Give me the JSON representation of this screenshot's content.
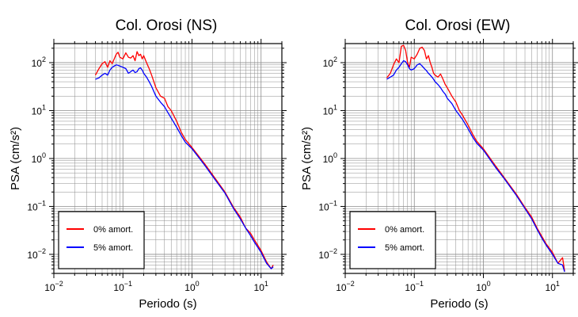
{
  "chart_data": [
    {
      "type": "line",
      "title": "Col. Orosi (NS)",
      "xlabel": "Periodo (s)",
      "ylabel": "PSA (cm/s²)",
      "xscale": "log",
      "yscale": "log",
      "xlim": [
        0.01,
        20
      ],
      "ylim": [
        0.004,
        250
      ],
      "grid": true,
      "legend_position": "bottom-left",
      "x_ticks": [
        {
          "base": "10",
          "exp": "−2"
        },
        {
          "base": "10",
          "exp": "−1"
        },
        {
          "base": "10",
          "exp": "0"
        },
        {
          "base": "10",
          "exp": "1"
        }
      ],
      "y_ticks": [
        {
          "base": "10",
          "exp": "−2"
        },
        {
          "base": "10",
          "exp": "−1"
        },
        {
          "base": "10",
          "exp": "0"
        },
        {
          "base": "10",
          "exp": "1"
        },
        {
          "base": "10",
          "exp": "2"
        }
      ],
      "series": [
        {
          "name": "0% amort.",
          "color": "#ff0000",
          "x": [
            0.04,
            0.045,
            0.05,
            0.055,
            0.06,
            0.065,
            0.07,
            0.075,
            0.08,
            0.085,
            0.09,
            0.1,
            0.11,
            0.12,
            0.13,
            0.14,
            0.15,
            0.16,
            0.17,
            0.18,
            0.19,
            0.2,
            0.22,
            0.24,
            0.26,
            0.28,
            0.3,
            0.35,
            0.4,
            0.45,
            0.5,
            0.6,
            0.7,
            0.8,
            1.0,
            1.5,
            2.0,
            3.0,
            4.0,
            5.0,
            6.0,
            7.0,
            8.0,
            10.0,
            12.0,
            14.0,
            15.0
          ],
          "y": [
            55,
            75,
            95,
            105,
            80,
            110,
            95,
            120,
            150,
            165,
            130,
            120,
            160,
            130,
            125,
            140,
            110,
            170,
            140,
            150,
            120,
            140,
            100,
            75,
            55,
            40,
            30,
            20,
            18,
            12,
            10,
            6,
            3.5,
            2.5,
            1.7,
            0.8,
            0.45,
            0.2,
            0.095,
            0.06,
            0.035,
            0.028,
            0.02,
            0.012,
            0.007,
            0.005,
            0.006
          ]
        },
        {
          "name": "5% amort.",
          "color": "#0000ff",
          "x": [
            0.04,
            0.045,
            0.05,
            0.055,
            0.06,
            0.065,
            0.07,
            0.075,
            0.08,
            0.085,
            0.09,
            0.1,
            0.11,
            0.12,
            0.13,
            0.14,
            0.15,
            0.16,
            0.17,
            0.18,
            0.19,
            0.2,
            0.22,
            0.24,
            0.26,
            0.28,
            0.3,
            0.35,
            0.4,
            0.45,
            0.5,
            0.6,
            0.7,
            0.8,
            1.0,
            1.5,
            2.0,
            3.0,
            4.0,
            5.0,
            6.0,
            7.0,
            8.0,
            10.0,
            12.0,
            14.0,
            15.0
          ],
          "y": [
            45,
            48,
            55,
            60,
            55,
            70,
            80,
            85,
            90,
            88,
            85,
            80,
            75,
            60,
            65,
            70,
            62,
            65,
            75,
            78,
            70,
            60,
            50,
            40,
            32,
            25,
            20,
            15,
            12,
            9,
            7,
            4.5,
            3,
            2.2,
            1.6,
            0.75,
            0.42,
            0.19,
            0.09,
            0.055,
            0.035,
            0.025,
            0.018,
            0.011,
            0.0065,
            0.005,
            0.0055
          ]
        }
      ]
    },
    {
      "type": "line",
      "title": "Col. Orosi (EW)",
      "xlabel": "Periodo (s)",
      "ylabel": "PSA (cm/s²)",
      "xscale": "log",
      "yscale": "log",
      "xlim": [
        0.01,
        20
      ],
      "ylim": [
        0.004,
        250
      ],
      "grid": true,
      "legend_position": "bottom-left",
      "x_ticks": [
        {
          "base": "10",
          "exp": "−2"
        },
        {
          "base": "10",
          "exp": "−1"
        },
        {
          "base": "10",
          "exp": "0"
        },
        {
          "base": "10",
          "exp": "1"
        }
      ],
      "y_ticks": [
        {
          "base": "10",
          "exp": "−2"
        },
        {
          "base": "10",
          "exp": "−1"
        },
        {
          "base": "10",
          "exp": "0"
        },
        {
          "base": "10",
          "exp": "1"
        },
        {
          "base": "10",
          "exp": "2"
        }
      ],
      "series": [
        {
          "name": "0% amort.",
          "color": "#ff0000",
          "x": [
            0.04,
            0.045,
            0.05,
            0.055,
            0.06,
            0.065,
            0.07,
            0.075,
            0.08,
            0.085,
            0.09,
            0.1,
            0.11,
            0.12,
            0.13,
            0.14,
            0.15,
            0.16,
            0.17,
            0.18,
            0.19,
            0.2,
            0.22,
            0.24,
            0.26,
            0.28,
            0.3,
            0.35,
            0.4,
            0.45,
            0.5,
            0.6,
            0.7,
            0.8,
            1.0,
            1.5,
            2.0,
            3.0,
            4.0,
            5.0,
            6.0,
            7.0,
            8.0,
            10.0,
            12.0,
            14.0,
            15.0
          ],
          "y": [
            48,
            60,
            90,
            120,
            100,
            220,
            230,
            180,
            100,
            80,
            130,
            120,
            150,
            200,
            210,
            180,
            120,
            140,
            100,
            80,
            60,
            55,
            50,
            58,
            45,
            35,
            30,
            20,
            15,
            10,
            8,
            5,
            3.2,
            2.3,
            1.6,
            0.7,
            0.4,
            0.18,
            0.095,
            0.06,
            0.035,
            0.024,
            0.017,
            0.011,
            0.0065,
            0.0085,
            0.0045
          ]
        },
        {
          "name": "5% amort.",
          "color": "#0000ff",
          "x": [
            0.04,
            0.045,
            0.05,
            0.055,
            0.06,
            0.065,
            0.07,
            0.075,
            0.08,
            0.085,
            0.09,
            0.1,
            0.11,
            0.12,
            0.13,
            0.14,
            0.15,
            0.16,
            0.17,
            0.18,
            0.19,
            0.2,
            0.22,
            0.24,
            0.26,
            0.28,
            0.3,
            0.35,
            0.4,
            0.45,
            0.5,
            0.6,
            0.7,
            0.8,
            1.0,
            1.5,
            2.0,
            3.0,
            4.0,
            5.0,
            6.0,
            7.0,
            8.0,
            10.0,
            12.0,
            14.0,
            15.0
          ],
          "y": [
            45,
            50,
            55,
            70,
            80,
            95,
            110,
            105,
            90,
            75,
            70,
            75,
            90,
            95,
            85,
            75,
            68,
            60,
            55,
            50,
            45,
            40,
            35,
            30,
            25,
            22,
            18,
            14,
            10,
            8,
            6.5,
            4.2,
            2.8,
            2.1,
            1.5,
            0.65,
            0.38,
            0.17,
            0.09,
            0.055,
            0.033,
            0.022,
            0.016,
            0.01,
            0.0065,
            0.006,
            0.0043
          ]
        }
      ]
    }
  ]
}
